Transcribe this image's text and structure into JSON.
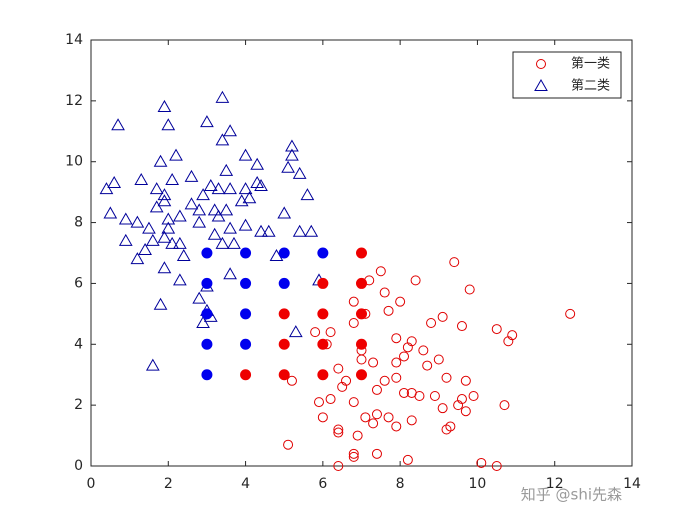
{
  "chart_data": {
    "type": "scatter",
    "xlim": [
      0,
      14
    ],
    "ylim": [
      0,
      14
    ],
    "xticks": [
      0,
      2,
      4,
      6,
      8,
      10,
      12,
      14
    ],
    "yticks": [
      0,
      2,
      4,
      6,
      8,
      10,
      12,
      14
    ],
    "legend": "upper right",
    "series": [
      {
        "name": "第一类",
        "color": "#e00000",
        "marker": "circle",
        "filled": false,
        "x": [
          12.4,
          9.4,
          8.4,
          7.5,
          7.2,
          7.6,
          6.8,
          8.0,
          7.7,
          6.8,
          7.1,
          8.8,
          9.1,
          9.8,
          9.6,
          10.5,
          10.9,
          10.8,
          5.8,
          6.2,
          6.1,
          7.0,
          7.9,
          8.2,
          8.3,
          8.6,
          8.1,
          7.9,
          7.3,
          7.0,
          6.4,
          6.6,
          8.7,
          9.0,
          9.2,
          9.7,
          7.6,
          7.4,
          7.9,
          8.3,
          8.1,
          8.5,
          5.2,
          6.5,
          6.2,
          5.9,
          6.8,
          8.9,
          9.6,
          9.9,
          10.7,
          9.1,
          9.5,
          9.7,
          7.1,
          7.3,
          7.4,
          7.7,
          7.9,
          8.3,
          6.0,
          6.4,
          6.4,
          6.9,
          9.2,
          9.3,
          5.1,
          6.8,
          6.8,
          7.4,
          8.2,
          6.4,
          10.1,
          10.5
        ],
        "values": [
          5.0,
          6.7,
          6.1,
          6.4,
          6.1,
          5.7,
          5.4,
          5.4,
          5.1,
          4.7,
          5.0,
          4.7,
          4.9,
          5.8,
          4.6,
          4.5,
          4.3,
          4.1,
          4.4,
          4.4,
          4.0,
          3.8,
          4.2,
          3.9,
          4.1,
          3.8,
          3.6,
          3.4,
          3.4,
          3.5,
          3.2,
          2.8,
          3.3,
          3.5,
          2.9,
          2.8,
          2.8,
          2.5,
          2.9,
          2.4,
          2.4,
          2.3,
          2.8,
          2.6,
          2.2,
          2.1,
          2.1,
          2.3,
          2.2,
          2.3,
          2.0,
          1.9,
          2.0,
          1.8,
          1.6,
          1.4,
          1.7,
          1.6,
          1.3,
          1.5,
          1.6,
          1.2,
          1.1,
          1.0,
          1.2,
          1.3,
          0.7,
          0.4,
          0.3,
          0.4,
          0.2,
          0.0,
          0.1,
          0.0
        ]
      },
      {
        "name": "第二类",
        "color": "#00009a",
        "marker": "triangle",
        "filled": false,
        "x": [
          3.4,
          1.9,
          0.7,
          3.0,
          2.0,
          3.6,
          3.4,
          5.2,
          2.2,
          4.0,
          5.2,
          1.8,
          4.3,
          5.1,
          5.4,
          3.5,
          0.6,
          1.3,
          2.1,
          2.6,
          0.4,
          1.7,
          3.1,
          3.3,
          3.6,
          4.0,
          4.4,
          4.3,
          1.9,
          2.9,
          3.9,
          4.1,
          1.9,
          2.6,
          5.6,
          3.5,
          3.2,
          2.8,
          1.7,
          0.5,
          5.0,
          0.9,
          1.2,
          2.0,
          2.3,
          2.8,
          3.3,
          1.5,
          2.0,
          3.6,
          4.0,
          4.4,
          4.6,
          5.4,
          5.7,
          1.9,
          2.1,
          2.3,
          0.9,
          1.6,
          3.2,
          3.4,
          3.7,
          1.4,
          1.2,
          2.4,
          1.9,
          4.8,
          3.6,
          2.3,
          3.0,
          5.9,
          2.8,
          1.8,
          3.0,
          3.1,
          2.9,
          5.3,
          1.6
        ],
        "values": [
          12.1,
          11.8,
          11.2,
          11.3,
          11.2,
          11.0,
          10.7,
          10.5,
          10.2,
          10.2,
          10.2,
          10.0,
          9.9,
          9.8,
          9.6,
          9.7,
          9.3,
          9.4,
          9.4,
          9.5,
          9.1,
          9.1,
          9.2,
          9.1,
          9.1,
          9.1,
          9.2,
          9.3,
          8.9,
          8.9,
          8.7,
          8.8,
          8.7,
          8.6,
          8.9,
          8.4,
          8.4,
          8.4,
          8.5,
          8.3,
          8.3,
          8.1,
          8.0,
          8.1,
          8.2,
          8.0,
          8.2,
          7.8,
          7.8,
          7.8,
          7.9,
          7.7,
          7.7,
          7.7,
          7.7,
          7.5,
          7.3,
          7.3,
          7.4,
          7.4,
          7.6,
          7.3,
          7.3,
          7.1,
          6.8,
          6.9,
          6.5,
          6.9,
          6.3,
          6.1,
          5.9,
          6.1,
          5.5,
          5.3,
          5.1,
          4.9,
          4.7,
          4.4,
          3.3
        ]
      },
      {
        "color": "#ee0000",
        "marker": "circle",
        "filled": true,
        "x": [
          4,
          5,
          5,
          5,
          6,
          6,
          6,
          6,
          7,
          7,
          7,
          7,
          7
        ],
        "values": [
          3,
          3,
          4,
          5,
          3,
          4,
          5,
          6,
          3,
          4,
          5,
          6,
          7
        ]
      },
      {
        "color": "#0000ee",
        "marker": "circle",
        "filled": true,
        "x": [
          3,
          3,
          3,
          3,
          3,
          4,
          4,
          4,
          4,
          5,
          5,
          6
        ],
        "values": [
          3,
          4,
          5,
          6,
          7,
          4,
          5,
          6,
          7,
          6,
          7,
          7
        ]
      }
    ]
  },
  "watermark": "知乎 @shi先森"
}
